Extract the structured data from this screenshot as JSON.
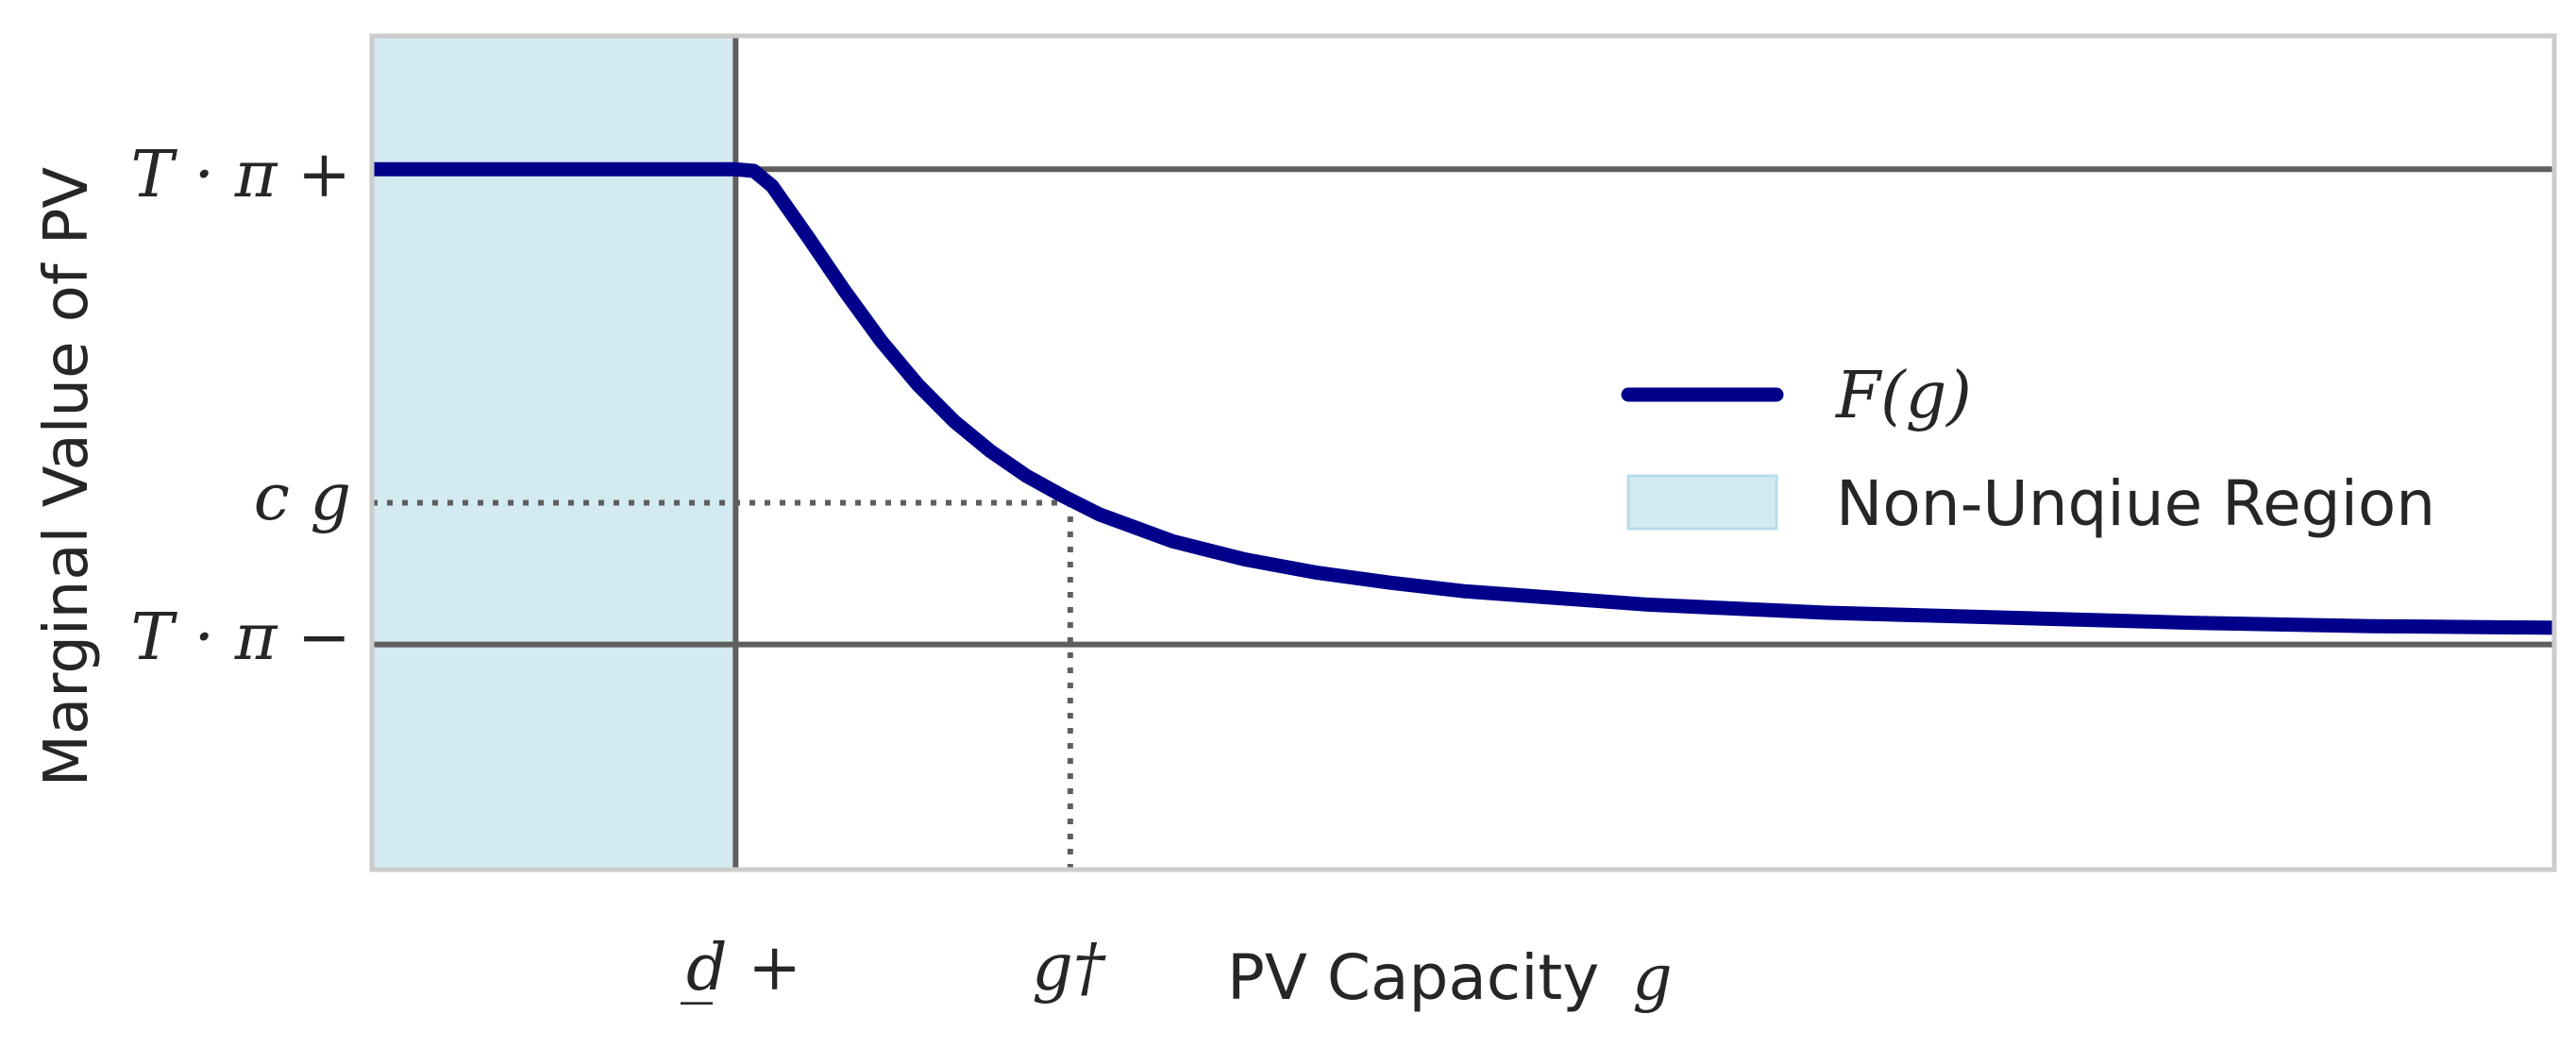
{
  "chart_data": {
    "type": "line",
    "title": "",
    "xlabel": "PV Capacity",
    "xlabel_var": "g",
    "ylabel": "Marginal Value of PV",
    "xlim": [
      0,
      6
    ],
    "ylim": [
      0,
      5
    ],
    "grid": false,
    "legend": {
      "placement": "center-right",
      "entries": [
        "F(g)",
        "Non-Unqiue Region"
      ]
    },
    "x_ticks": [
      {
        "label": "d̲ +",
        "value": 1.0
      },
      {
        "label": "g†",
        "value": 1.92
      }
    ],
    "y_ticks": [
      {
        "label": "T · π +",
        "value": 4.2
      },
      {
        "label": "c g",
        "value": 2.2
      },
      {
        "label": "T · π −",
        "value": 1.35
      }
    ],
    "reference_lines": [
      {
        "orientation": "horizontal",
        "value": 4.2,
        "style": "solid"
      },
      {
        "orientation": "horizontal",
        "value": 1.35,
        "style": "solid"
      },
      {
        "orientation": "vertical",
        "value": 1.0,
        "style": "solid"
      },
      {
        "orientation": "horizontal",
        "value": 2.2,
        "x_max": 1.92,
        "style": "dotted"
      },
      {
        "orientation": "vertical",
        "value": 1.92,
        "y_max": 2.2,
        "style": "dotted"
      }
    ],
    "shaded_region": {
      "name": "Non-Unqiue Region",
      "x": [
        0,
        1.0
      ]
    },
    "series": [
      {
        "name": "F(g)",
        "x": [
          0,
          0.5,
          1.0,
          1.05,
          1.1,
          1.2,
          1.3,
          1.4,
          1.5,
          1.6,
          1.7,
          1.8,
          1.9,
          2.0,
          2.2,
          2.4,
          2.6,
          2.8,
          3.0,
          3.5,
          4.0,
          4.5,
          5.0,
          5.5,
          6.0
        ],
        "y": [
          4.2,
          4.2,
          4.2,
          4.19,
          4.1,
          3.79,
          3.47,
          3.17,
          2.91,
          2.69,
          2.51,
          2.36,
          2.24,
          2.13,
          1.97,
          1.86,
          1.78,
          1.72,
          1.67,
          1.59,
          1.54,
          1.51,
          1.48,
          1.46,
          1.45
        ]
      }
    ],
    "colors": {
      "line": "#00008b",
      "shade": "#d4eaf1",
      "shade_border": "#b6dde8",
      "ref": "#5f5f5f",
      "frame": "#cccccc",
      "text": "#262626"
    }
  }
}
